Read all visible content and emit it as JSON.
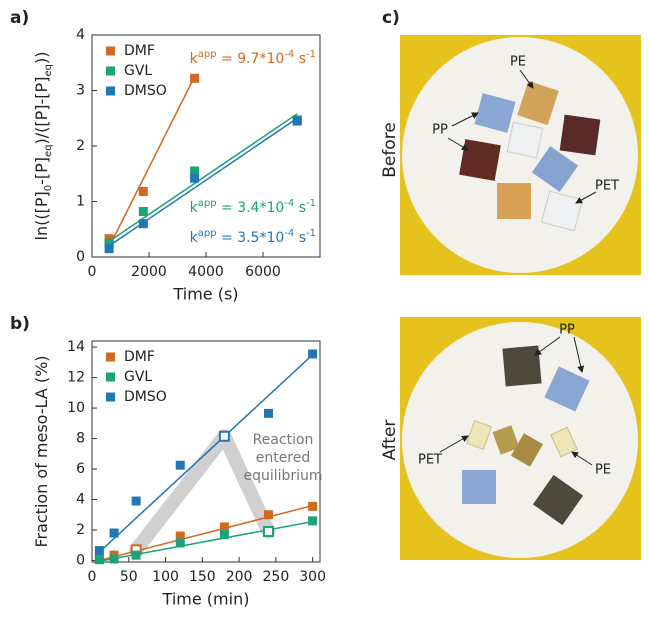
{
  "chart_data": [
    {
      "type": "scatter",
      "panel_label": "a)",
      "xlabel": "Time (s)",
      "ylabel": [
        {
          "text": "ln(([P]"
        },
        {
          "text": "0",
          "sub": true
        },
        {
          "text": "-[P]"
        },
        {
          "text": "eq",
          "sub": true
        },
        {
          "text": ")/([P]-[P]"
        },
        {
          "text": "eq",
          "sub": true
        },
        {
          "text": "))"
        }
      ],
      "xlim": [
        0,
        8000
      ],
      "xticks": [
        0,
        2000,
        4000,
        6000
      ],
      "ylim": [
        0,
        4
      ],
      "yticks": [
        0,
        1,
        2,
        3,
        4
      ],
      "series": [
        {
          "name": "DMF",
          "color": "#d2691e",
          "x": [
            600,
            1800,
            3600
          ],
          "values": [
            0.33,
            1.18,
            3.22
          ],
          "fit": {
            "x": [
              600,
              3600
            ],
            "values": [
              0.18,
              3.25
            ]
          }
        },
        {
          "name": "GVL",
          "color": "#1aa37a",
          "x": [
            600,
            1800,
            3600,
            7200
          ],
          "values": [
            0.25,
            0.82,
            1.55,
            2.47
          ],
          "fit": {
            "x": [
              600,
              7200
            ],
            "values": [
              0.28,
              2.58
            ]
          }
        },
        {
          "name": "DMSO",
          "color": "#1f78b4",
          "x": [
            600,
            1800,
            3600,
            7200
          ],
          "values": [
            0.15,
            0.6,
            1.42,
            2.45
          ],
          "fit": {
            "x": [
              600,
              7200
            ],
            "values": [
              0.2,
              2.5
            ]
          }
        }
      ],
      "annotations": [
        {
          "color": "#d2691e",
          "parts": [
            {
              "text": "k"
            },
            {
              "text": "app",
              "sup": true
            },
            {
              "text": " = 9.7*10"
            },
            {
              "text": "-4",
              "sup": true
            },
            {
              "text": " s"
            },
            {
              "text": "-1",
              "sup": true
            }
          ]
        },
        {
          "color": "#1aa37a",
          "parts": [
            {
              "text": "k"
            },
            {
              "text": "app",
              "sup": true
            },
            {
              "text": " = 3.4*10"
            },
            {
              "text": "-4",
              "sup": true
            },
            {
              "text": " s"
            },
            {
              "text": "-1",
              "sup": true
            }
          ]
        },
        {
          "color": "#1f78b4",
          "parts": [
            {
              "text": "k"
            },
            {
              "text": "app",
              "sup": true
            },
            {
              "text": " = 3.5*10"
            },
            {
              "text": "-4",
              "sup": true
            },
            {
              "text": " s"
            },
            {
              "text": "-1",
              "sup": true
            }
          ]
        }
      ]
    },
    {
      "type": "scatter",
      "panel_label": "b)",
      "xlabel": "Time (min)",
      "ylabel": [
        {
          "text": "Fraction of meso-LA (%)"
        }
      ],
      "xlim": [
        0,
        310
      ],
      "xticks": [
        0,
        50,
        100,
        150,
        200,
        250,
        300
      ],
      "ylim": [
        -0.1,
        14.4
      ],
      "yticks": [
        0,
        2,
        4,
        6,
        8,
        10,
        12,
        14
      ],
      "series": [
        {
          "name": "DMF",
          "color": "#d2691e",
          "x": [
            10,
            30,
            60,
            120,
            180,
            240,
            300
          ],
          "values": [
            0.1,
            0.35,
            0.7,
            1.6,
            2.2,
            3.0,
            3.55
          ],
          "open": [
            2
          ],
          "fit": {
            "x": [
              10,
              300
            ],
            "values": [
              0.0,
              3.6
            ]
          }
        },
        {
          "name": "GVL",
          "color": "#1aa37a",
          "x": [
            10,
            30,
            60,
            120,
            180,
            240,
            300
          ],
          "values": [
            0.05,
            0.1,
            0.35,
            1.15,
            1.7,
            1.9,
            2.6
          ],
          "open": [
            5
          ],
          "fit": {
            "x": [
              10,
              300
            ],
            "values": [
              -0.05,
              2.55
            ]
          }
        },
        {
          "name": "DMSO",
          "color": "#1f78b4",
          "x": [
            10,
            30,
            60,
            120,
            180,
            240,
            300
          ],
          "values": [
            0.65,
            1.8,
            3.9,
            6.25,
            8.15,
            9.65,
            13.55
          ],
          "open": [
            4
          ],
          "fit": {
            "x": [
              10,
              300
            ],
            "values": [
              0.55,
              13.5
            ]
          }
        }
      ],
      "annotations": [
        {
          "color": "#777777",
          "parts": [
            {
              "text": "Reaction"
            },
            {
              "text": "entered"
            },
            {
              "text": "equilibrium"
            }
          ]
        }
      ]
    }
  ],
  "panel_c": {
    "label": "c)",
    "before": {
      "title": "Before",
      "labels": [
        "PE",
        "PP",
        "PET"
      ]
    },
    "after": {
      "title": "After",
      "labels": [
        "PP",
        "PET",
        "PE"
      ]
    }
  }
}
